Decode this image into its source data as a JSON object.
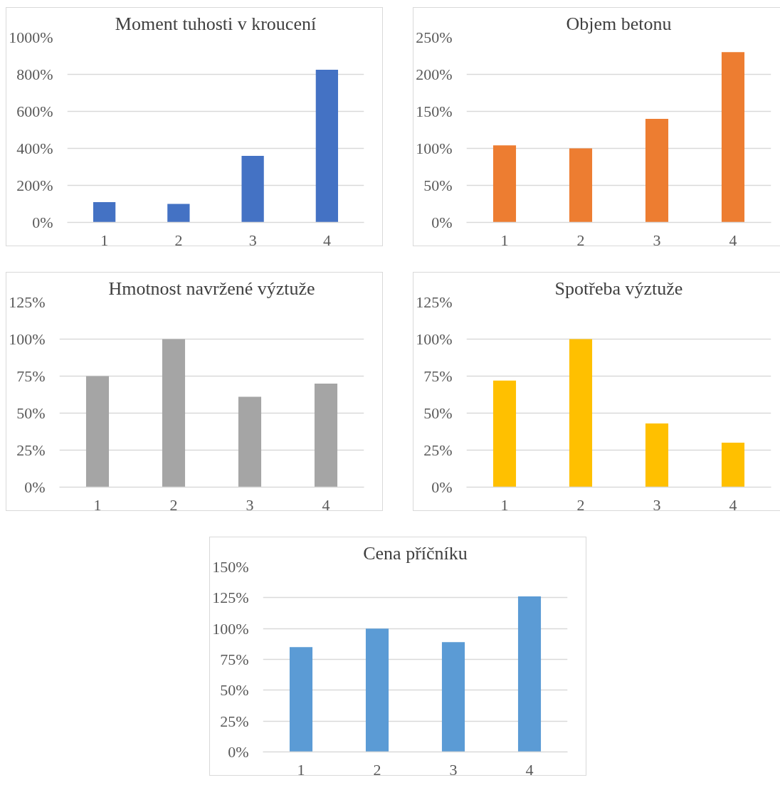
{
  "chart_data": [
    {
      "type": "bar",
      "title": "Moment tuhosti v kroucení",
      "categories": [
        "1",
        "2",
        "3",
        "4"
      ],
      "values": [
        110,
        100,
        360,
        825
      ],
      "color": "#4472c4",
      "ylim": [
        0,
        1000
      ],
      "yticks": [
        {
          "value": 0,
          "label": "0%"
        },
        {
          "value": 200,
          "label": "200%"
        },
        {
          "value": 400,
          "label": "400%"
        },
        {
          "value": 600,
          "label": "600%"
        },
        {
          "value": 800,
          "label": "800%"
        },
        {
          "value": 1000,
          "label": "1000%"
        }
      ],
      "grid": "y"
    },
    {
      "type": "bar",
      "title": "Objem betonu",
      "categories": [
        "1",
        "2",
        "3",
        "4"
      ],
      "values": [
        104,
        100,
        140,
        230
      ],
      "color": "#ed7d31",
      "ylim": [
        0,
        250
      ],
      "yticks": [
        {
          "value": 0,
          "label": "0%"
        },
        {
          "value": 50,
          "label": "50%"
        },
        {
          "value": 100,
          "label": "100%"
        },
        {
          "value": 150,
          "label": "150%"
        },
        {
          "value": 200,
          "label": "200%"
        },
        {
          "value": 250,
          "label": "250%"
        }
      ],
      "grid": "y"
    },
    {
      "type": "bar",
      "title": "Hmotnost navržené výztuže",
      "categories": [
        "1",
        "2",
        "3",
        "4"
      ],
      "values": [
        75,
        100,
        61,
        70
      ],
      "color": "#a5a5a5",
      "ylim": [
        0,
        125
      ],
      "yticks": [
        {
          "value": 0,
          "label": "0%"
        },
        {
          "value": 25,
          "label": "25%"
        },
        {
          "value": 50,
          "label": "50%"
        },
        {
          "value": 75,
          "label": "75%"
        },
        {
          "value": 100,
          "label": "100%"
        },
        {
          "value": 125,
          "label": "125%"
        }
      ],
      "grid": "y"
    },
    {
      "type": "bar",
      "title": "Spotřeba výztuže",
      "categories": [
        "1",
        "2",
        "3",
        "4"
      ],
      "values": [
        72,
        100,
        43,
        30
      ],
      "color": "#ffc000",
      "ylim": [
        0,
        125
      ],
      "yticks": [
        {
          "value": 0,
          "label": "0%"
        },
        {
          "value": 25,
          "label": "25%"
        },
        {
          "value": 50,
          "label": "50%"
        },
        {
          "value": 75,
          "label": "75%"
        },
        {
          "value": 100,
          "label": "100%"
        },
        {
          "value": 125,
          "label": "125%"
        }
      ],
      "grid": "y"
    },
    {
      "type": "bar",
      "title": "Cena příčníku",
      "categories": [
        "1",
        "2",
        "3",
        "4"
      ],
      "values": [
        85,
        100,
        89,
        126
      ],
      "color": "#5b9bd5",
      "ylim": [
        0,
        150
      ],
      "yticks": [
        {
          "value": 0,
          "label": "0%"
        },
        {
          "value": 25,
          "label": "25%"
        },
        {
          "value": 50,
          "label": "50%"
        },
        {
          "value": 75,
          "label": "75%"
        },
        {
          "value": 100,
          "label": "100%"
        },
        {
          "value": 125,
          "label": "125%"
        },
        {
          "value": 150,
          "label": "150%"
        }
      ],
      "grid": "y"
    }
  ]
}
